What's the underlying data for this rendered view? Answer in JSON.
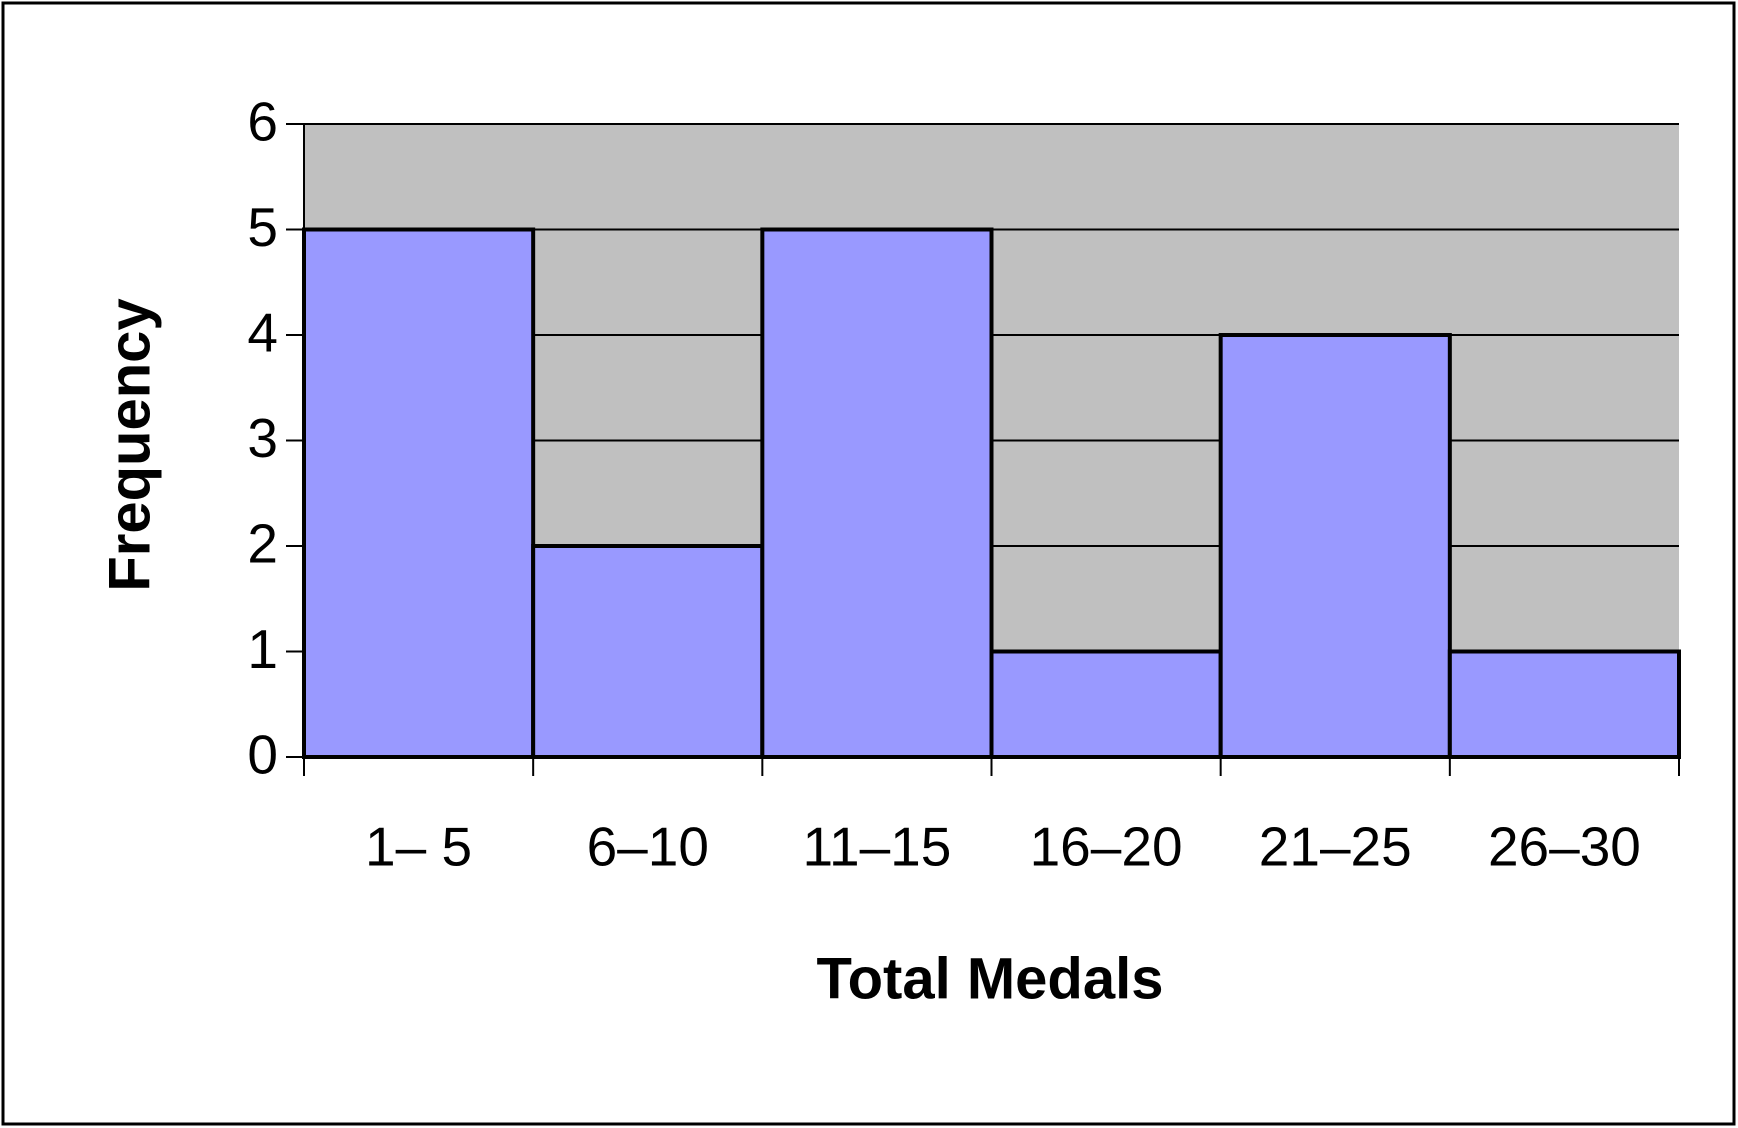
{
  "chart_data": {
    "type": "bar",
    "x_label": "Total Medals",
    "y_label": "Frequency",
    "categories": [
      "1– 5",
      "6–10",
      "11–15",
      "16–20",
      "21–25",
      "26–30"
    ],
    "values": [
      5,
      2,
      5,
      1,
      4,
      1
    ],
    "color": "#9999ff",
    "plot_background": "#c0c0c0",
    "ylim": [
      0,
      6
    ],
    "yticks": [
      0,
      1,
      2,
      3,
      4,
      5,
      6
    ],
    "grid": true
  }
}
